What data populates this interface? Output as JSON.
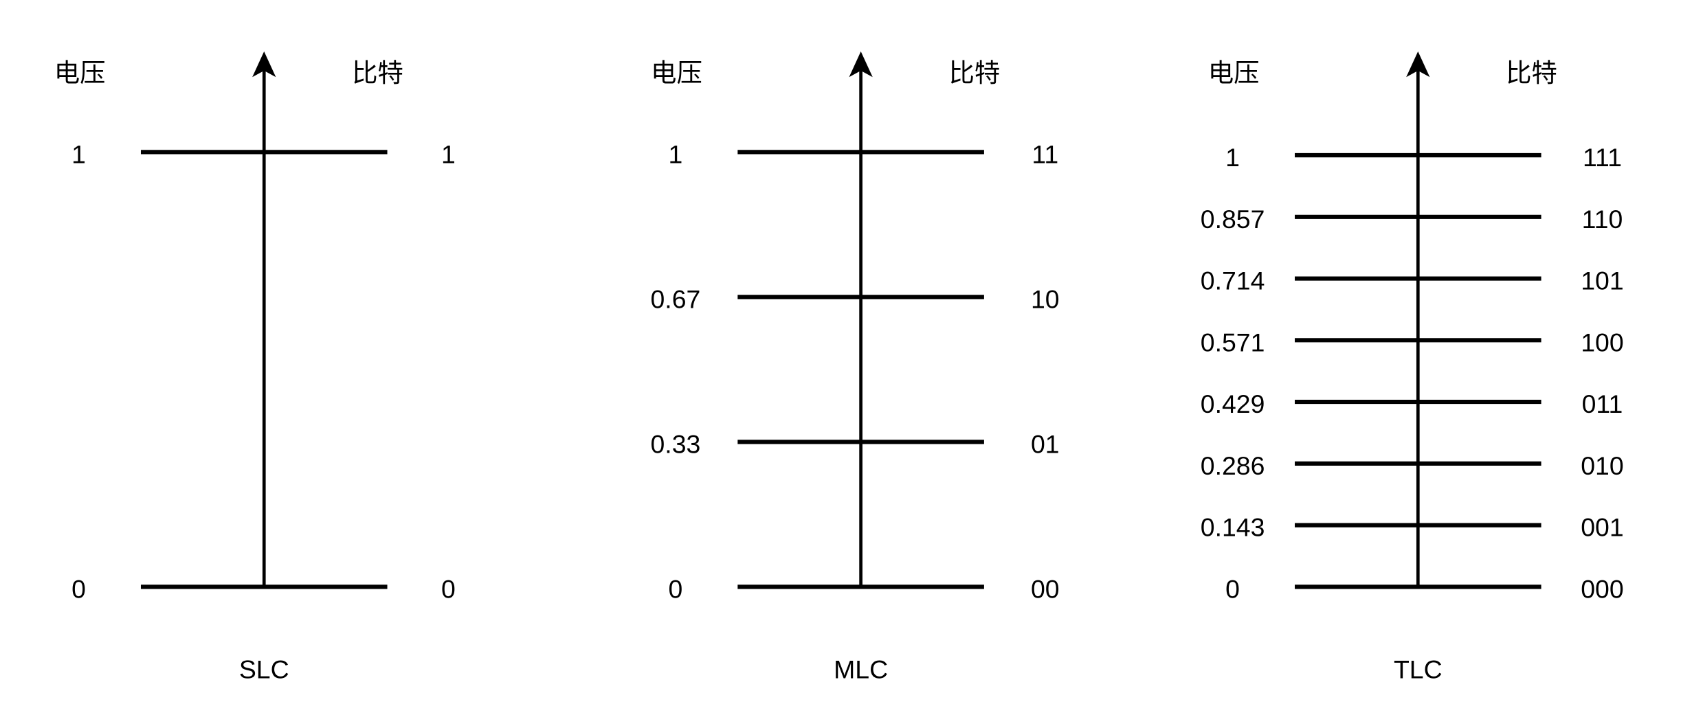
{
  "header": {
    "left_label": "电压",
    "right_label": "比特"
  },
  "colors": {
    "line": "#000000",
    "background": "#ffffff"
  },
  "panels": [
    {
      "title": "SLC",
      "levels": [
        {
          "voltage": "1",
          "bits": "1"
        },
        {
          "voltage": "0",
          "bits": "0"
        }
      ]
    },
    {
      "title": "MLC",
      "levels": [
        {
          "voltage": "1",
          "bits": "11"
        },
        {
          "voltage": "0.67",
          "bits": "10"
        },
        {
          "voltage": "0.33",
          "bits": "01"
        },
        {
          "voltage": "0",
          "bits": "00"
        }
      ]
    },
    {
      "title": "TLC",
      "levels": [
        {
          "voltage": "1",
          "bits": "111"
        },
        {
          "voltage": "0.857",
          "bits": "110"
        },
        {
          "voltage": "0.714",
          "bits": "101"
        },
        {
          "voltage": "0.571",
          "bits": "100"
        },
        {
          "voltage": "0.429",
          "bits": "011"
        },
        {
          "voltage": "0.286",
          "bits": "010"
        },
        {
          "voltage": "0.143",
          "bits": "001"
        },
        {
          "voltage": "0",
          "bits": "000"
        }
      ]
    }
  ]
}
